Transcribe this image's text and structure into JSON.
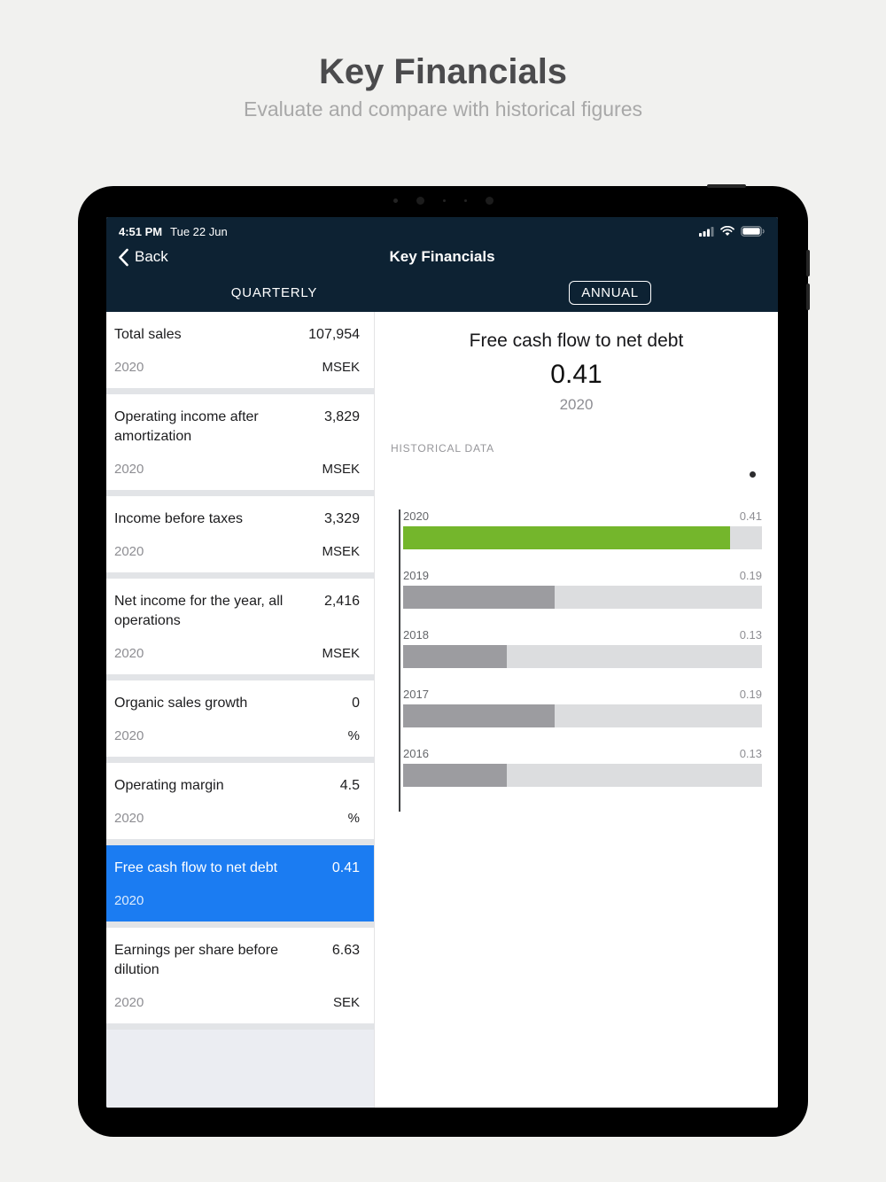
{
  "page": {
    "title": "Key Financials",
    "subtitle": "Evaluate and compare with historical figures"
  },
  "status_bar": {
    "time": "4:51 PM",
    "date": "Tue 22 Jun",
    "icons": [
      "cellular-signal-icon",
      "wifi-icon",
      "battery-icon"
    ]
  },
  "nav": {
    "back_label": "Back",
    "title": "Key Financials",
    "tabs": [
      {
        "label": "QUARTERLY",
        "selected": false
      },
      {
        "label": "ANNUAL",
        "selected": true
      }
    ]
  },
  "metrics": [
    {
      "title": "Total sales",
      "value": "107,954",
      "year": "2020",
      "unit": "MSEK",
      "selected": false
    },
    {
      "title": "Operating income after amortization",
      "value": "3,829",
      "year": "2020",
      "unit": "MSEK",
      "selected": false
    },
    {
      "title": "Income before taxes",
      "value": "3,329",
      "year": "2020",
      "unit": "MSEK",
      "selected": false
    },
    {
      "title": "Net income for the year, all operations",
      "value": "2,416",
      "year": "2020",
      "unit": "MSEK",
      "selected": false
    },
    {
      "title": "Organic sales growth",
      "value": "0",
      "year": "2020",
      "unit": "%",
      "selected": false
    },
    {
      "title": "Operating margin",
      "value": "4.5",
      "year": "2020",
      "unit": "%",
      "selected": false
    },
    {
      "title": "Free cash flow to net debt",
      "value": "0.41",
      "year": "2020",
      "unit": "",
      "selected": true
    },
    {
      "title": "Earnings per share before dilution",
      "value": "6.63",
      "year": "2020",
      "unit": "SEK",
      "selected": false
    }
  ],
  "detail": {
    "title": "Free cash flow to net debt",
    "value": "0.41",
    "year": "2020",
    "section_label": "HISTORICAL DATA"
  },
  "chart_data": {
    "type": "bar",
    "orientation": "horizontal",
    "title": "Free cash flow to net debt — historical data",
    "categories": [
      "2020",
      "2019",
      "2018",
      "2017",
      "2016"
    ],
    "values": [
      0.41,
      0.19,
      0.13,
      0.19,
      0.13
    ],
    "highlight_index": 0,
    "xmax": 0.45,
    "value_labels": "right-aligned above bar",
    "colors": {
      "highlight": "#74b62c",
      "bar": "#9c9ca0",
      "track": "#dcdddf",
      "axis": "#3f4042",
      "selected_card": "#1b7cf2",
      "header": "#0d2233"
    }
  }
}
